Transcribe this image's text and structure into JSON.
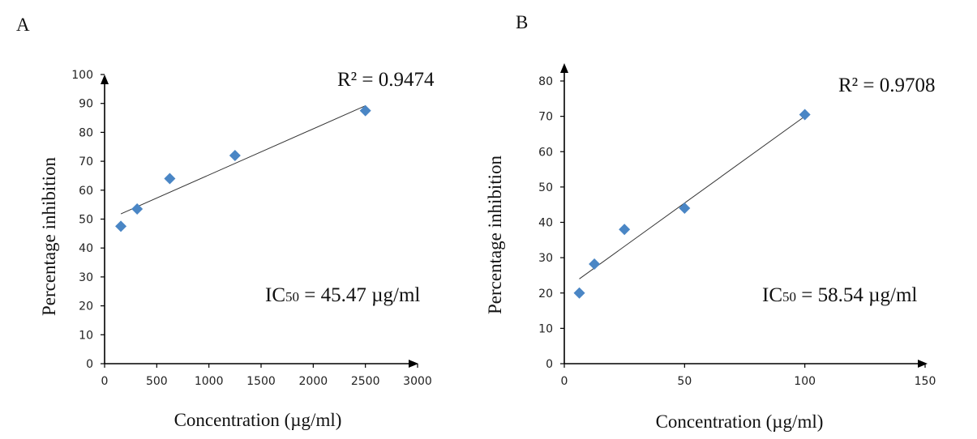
{
  "chart_data": [
    {
      "type": "scatter",
      "panel_label": "A",
      "xlabel": "Concentration (µg/ml)",
      "ylabel": "Percentage inhibition",
      "xlim": [
        0,
        3000
      ],
      "ylim": [
        0,
        100
      ],
      "xticks": [
        "0",
        "500",
        "1000",
        "1500",
        "2000",
        "2500",
        "3000"
      ],
      "yticks": [
        "0",
        "10",
        "20",
        "30",
        "40",
        "50",
        "60",
        "70",
        "80",
        "90",
        "100"
      ],
      "series": [
        {
          "x": [
            156,
            312,
            625,
            1250,
            2500
          ],
          "y": [
            47.5,
            53.5,
            64,
            72,
            87.5
          ],
          "color": "#4a86c5"
        }
      ],
      "trendline": {
        "x": [
          156,
          2500
        ],
        "y": [
          51.8,
          89.2
        ]
      },
      "r2_text": "R² = 0.9474",
      "ic50": {
        "prefix": "IC",
        "sub": "50",
        "suffix": " = 45.47 µg/ml"
      },
      "grid": false
    },
    {
      "type": "scatter",
      "panel_label": "B",
      "xlabel": "Concentration (µg/ml)",
      "ylabel": "Percentage inhibition",
      "xlim": [
        0,
        150
      ],
      "ylim": [
        0,
        80
      ],
      "xticks": [
        "0",
        "50",
        "100",
        "150"
      ],
      "yticks": [
        "0",
        "10",
        "20",
        "30",
        "40",
        "50",
        "60",
        "70",
        "80"
      ],
      "series": [
        {
          "x": [
            6.25,
            12.5,
            25,
            50,
            100
          ],
          "y": [
            20,
            28.2,
            38,
            44,
            70.5
          ],
          "color": "#4a86c5"
        }
      ],
      "trendline": {
        "x": [
          6.25,
          100
        ],
        "y": [
          24,
          70
        ]
      },
      "r2_text": "R² = 0.9708",
      "ic50": {
        "prefix": "IC",
        "sub": "50",
        "suffix": " = 58.54 µg/ml"
      },
      "grid": false
    }
  ]
}
